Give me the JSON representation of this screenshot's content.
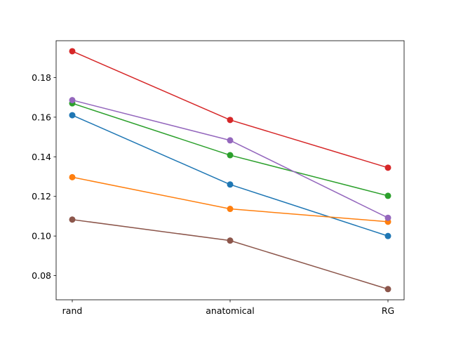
{
  "chart_data": {
    "type": "line",
    "title": "",
    "xlabel": "",
    "ylabel": "",
    "categories": [
      "rand",
      "anatomical",
      "RG"
    ],
    "ylim": [
      0.0678,
      0.1986
    ],
    "yticks": [
      "0.08",
      "0.10",
      "0.12",
      "0.14",
      "0.16",
      "0.18"
    ],
    "grid": false,
    "legend": "none",
    "series": [
      {
        "color": "#1f77b4",
        "values": [
          0.161,
          0.126,
          0.1
        ]
      },
      {
        "color": "#ff7f0e",
        "values": [
          0.1297,
          0.1137,
          0.1072
        ]
      },
      {
        "color": "#2ca02c",
        "values": [
          0.167,
          0.1408,
          0.1203
        ]
      },
      {
        "color": "#d62728",
        "values": [
          0.1933,
          0.1586,
          0.1345
        ]
      },
      {
        "color": "#9467bd",
        "values": [
          0.1686,
          0.1483,
          0.1092
        ]
      },
      {
        "color": "#8c564b",
        "values": [
          0.1083,
          0.0977,
          0.0732
        ]
      }
    ]
  }
}
